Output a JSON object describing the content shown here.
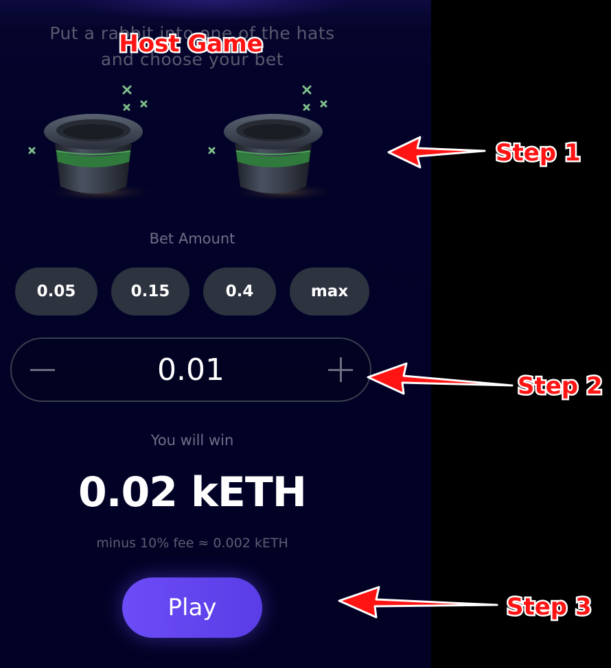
{
  "overlay": {
    "title": "Host Game",
    "steps": [
      "Step 1",
      "Step 2",
      "Step 3"
    ]
  },
  "game": {
    "instruction": "Put a rabbit into one of the hats and choose your bet",
    "hats": [
      {
        "icon": "top-hat-icon"
      },
      {
        "icon": "top-hat-icon"
      }
    ]
  },
  "bet": {
    "label": "Bet Amount",
    "presets": [
      "0.05",
      "0.15",
      "0.4",
      "max"
    ],
    "value": "0.01",
    "decrement_icon": "minus-icon",
    "increment_icon": "plus-icon"
  },
  "win": {
    "label": "You will win",
    "amount": "0.02 kETH",
    "fee_note": "minus 10% fee ≈ 0.002 kETH"
  },
  "play": {
    "label": "Play"
  },
  "colors": {
    "panel_background": "#03032a",
    "chip_background": "#2e3340",
    "play_button": "#6c4cf6",
    "annotation_red": "#ff1414",
    "hat_band": "#2f7a3c",
    "sparkle": "#7fbf8a"
  }
}
